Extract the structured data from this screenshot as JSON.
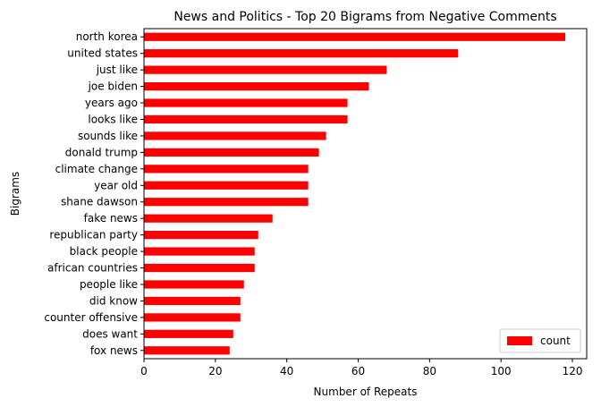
{
  "chart_data": {
    "type": "bar",
    "orientation": "horizontal",
    "title": "News and Politics - Top 20 Bigrams from Negative Comments",
    "xlabel": "Number of Repeats",
    "ylabel": "Bigrams",
    "xlim": [
      0,
      124
    ],
    "xticks": [
      0,
      20,
      40,
      60,
      80,
      100,
      120
    ],
    "grid": false,
    "legend_position": "lower-right",
    "bar_color": "#ff0000",
    "categories": [
      "north korea",
      "united states",
      "just like",
      "joe biden",
      "years ago",
      "looks like",
      "sounds like",
      "donald trump",
      "climate change",
      "year old",
      "shane dawson",
      "fake news",
      "republican party",
      "black people",
      "african countries",
      "people like",
      "did know",
      "counter offensive",
      "does want",
      "fox news"
    ],
    "series": [
      {
        "name": "count",
        "values": [
          118,
          88,
          68,
          63,
          57,
          57,
          51,
          49,
          46,
          46,
          46,
          36,
          32,
          31,
          31,
          28,
          27,
          27,
          25,
          24
        ]
      }
    ]
  }
}
